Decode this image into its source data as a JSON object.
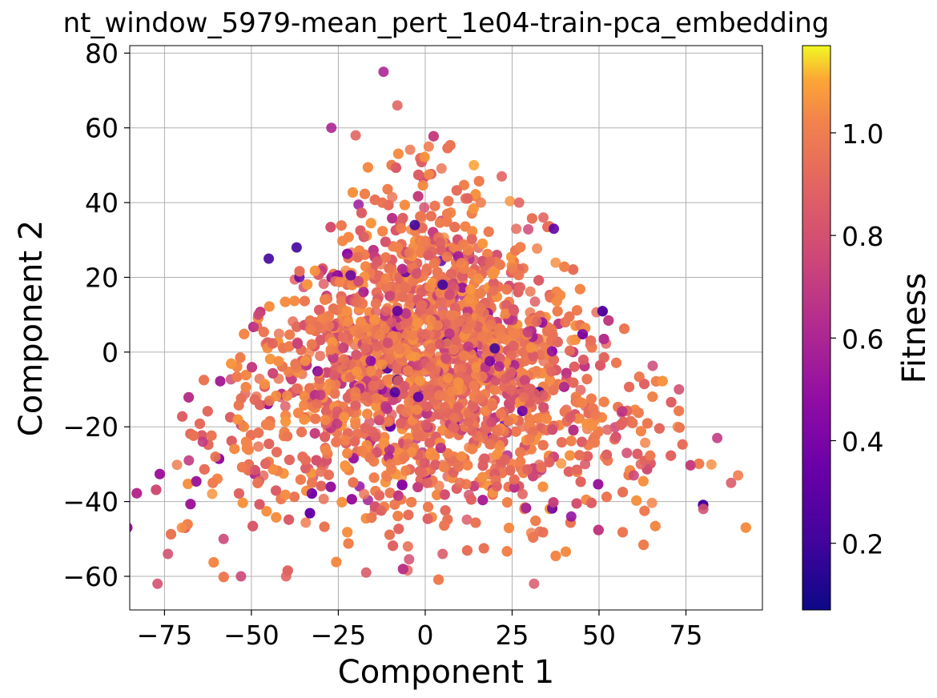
{
  "chart_data": {
    "type": "scatter",
    "title": "nt_window_5979-mean_pert_1e04-train-pca_embedding",
    "xlabel": "Component 1",
    "ylabel": "Component 2",
    "xlim": [
      -85,
      97
    ],
    "ylim": [
      -69,
      82
    ],
    "xticks": [
      -75,
      -50,
      -25,
      0,
      25,
      50,
      75
    ],
    "yticks": [
      -60,
      -40,
      -20,
      0,
      20,
      40,
      60,
      80
    ],
    "grid": true,
    "colormap": "plasma",
    "colorbar": {
      "label": "Fitness",
      "range": [
        0.07,
        1.17
      ],
      "ticks": [
        0.2,
        0.4,
        0.6,
        0.8,
        1.0
      ]
    },
    "point_count_approx": 6000,
    "series": [
      {
        "x": [
          -12,
          -8,
          14,
          22,
          27,
          -48,
          80,
          88,
          90,
          -77,
          -74,
          -70,
          -68,
          -40,
          -53,
          -17,
          -5,
          5,
          33,
          42,
          37,
          -37,
          -27,
          -3,
          16,
          34,
          58,
          -64,
          -58,
          -20,
          1,
          62,
          73,
          84,
          60,
          -30,
          -10,
          10,
          28,
          46,
          -45,
          5,
          -8,
          20,
          -2
        ],
        "y": [
          75,
          66,
          50,
          47,
          40,
          10,
          -42,
          -35,
          -33,
          -62,
          -54,
          -47,
          -29,
          -60,
          -60,
          -59,
          -52,
          -54,
          -48,
          -44,
          33,
          28,
          60,
          34,
          40,
          36,
          -27,
          -24,
          -50,
          58,
          55,
          -30,
          -10,
          -23,
          -33,
          -32,
          -30,
          -35,
          -38,
          -30,
          25,
          18,
          11,
          1,
          -12
        ],
        "fitness": [
          0.6,
          0.9,
          1.1,
          0.9,
          0.9,
          0.75,
          0.8,
          0.85,
          1.0,
          0.8,
          0.8,
          1.05,
          0.7,
          0.9,
          0.75,
          0.85,
          0.95,
          0.85,
          0.95,
          0.5,
          0.3,
          0.2,
          0.6,
          0.2,
          1.0,
          0.9,
          0.8,
          0.7,
          0.75,
          0.9,
          1.0,
          0.9,
          0.8,
          0.7,
          0.75,
          0.95,
          1.0,
          0.95,
          0.9,
          0.85,
          0.2,
          0.2,
          0.3,
          0.2,
          0.3
        ]
      }
    ]
  }
}
